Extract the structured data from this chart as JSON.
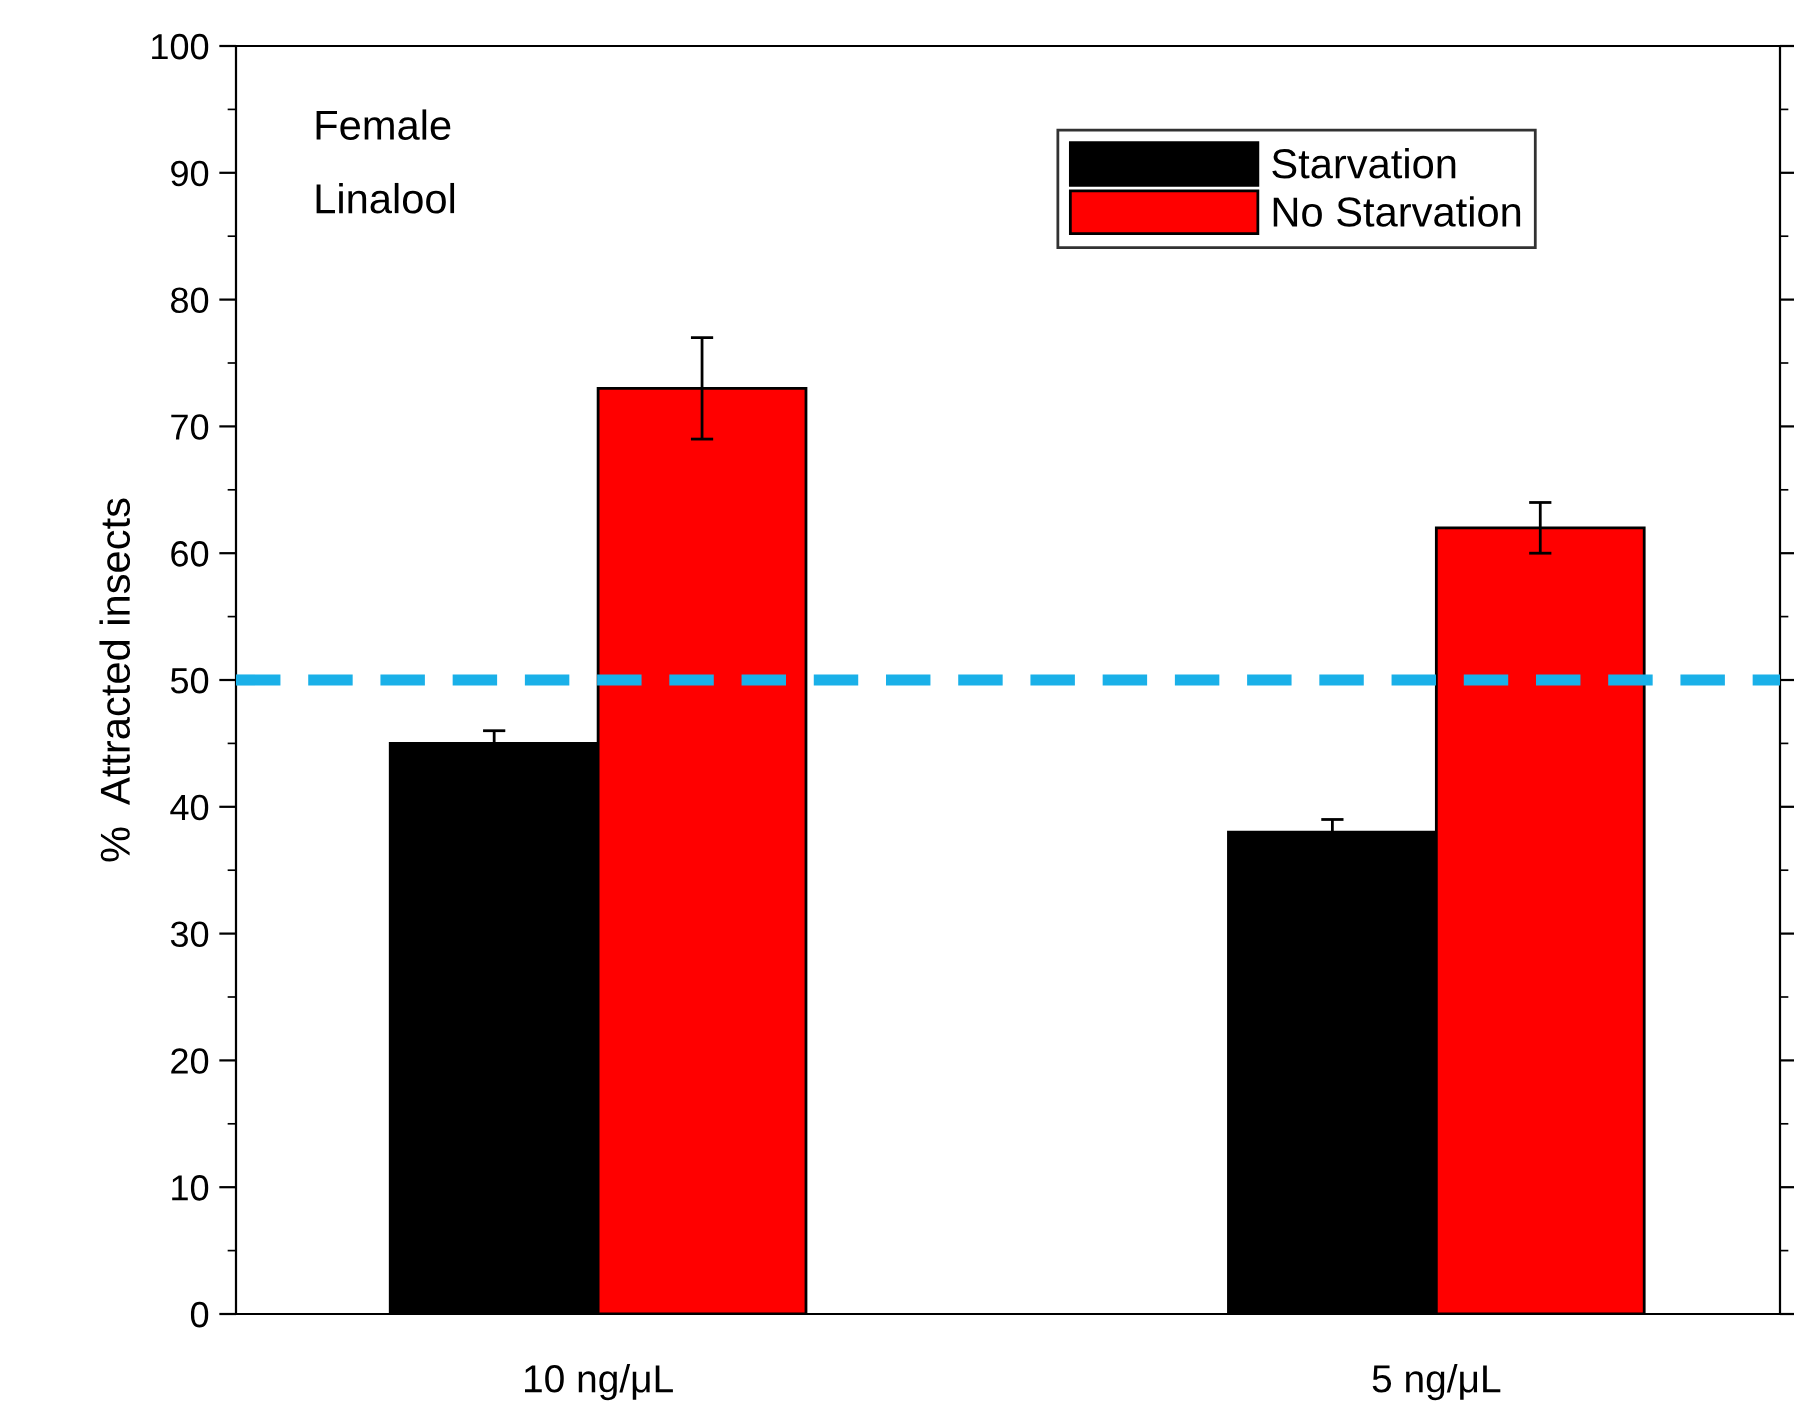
{
  "chart_data": {
    "type": "bar",
    "ylabel": "%  Attracted insects",
    "categories": [
      "10 ng/μL",
      "5 ng/μL"
    ],
    "series": [
      {
        "name": "Starvation",
        "color": "#000000",
        "values": [
          45,
          38
        ],
        "errors": [
          1,
          1
        ]
      },
      {
        "name": "No Starvation",
        "color": "#ff0000",
        "values": [
          73,
          62
        ],
        "errors": [
          4,
          2
        ]
      }
    ],
    "ylim": [
      0,
      100
    ],
    "yticks": [
      0,
      10,
      20,
      30,
      40,
      50,
      60,
      70,
      80,
      90,
      100
    ],
    "ref_lines": [
      {
        "axis": "y",
        "value": 50,
        "color": "#1ab0e8",
        "line_style": "dashed"
      }
    ],
    "annotations": [
      "Female",
      "Linalool"
    ],
    "legend": "top right",
    "grid": false
  }
}
